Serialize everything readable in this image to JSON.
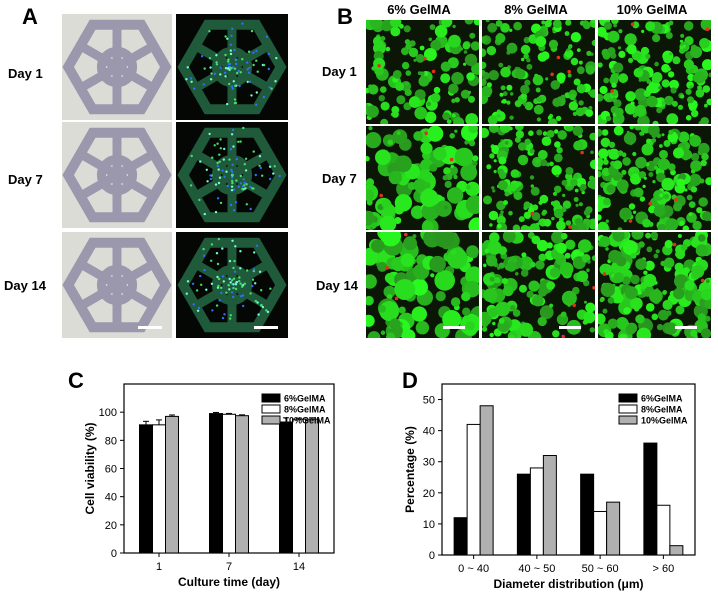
{
  "panel_labels": {
    "a": "A",
    "b": "B",
    "c": "C",
    "d": "D"
  },
  "days": [
    "Day 1",
    "Day 7",
    "Day 14"
  ],
  "gelma_columns": [
    "6% GelMA",
    "8% GelMA",
    "10% GelMA"
  ],
  "colors": {
    "black": "#000000",
    "white": "#ffffff",
    "gray": "#b0b0b0",
    "live_green": "#31d62a",
    "dead_red": "#e0301e",
    "nucleus_blue": "#2b4dff"
  },
  "chart_data": [
    {
      "type": "bar",
      "panel": "C",
      "categories": [
        "1",
        "7",
        "14"
      ],
      "series": [
        {
          "name": "6%GelMA",
          "values": [
            91,
            99,
            93
          ],
          "errors": [
            2.5,
            0.8,
            3
          ]
        },
        {
          "name": "8%GelMA",
          "values": [
            91,
            98.5,
            95
          ],
          "errors": [
            3.5,
            0.6,
            0.8
          ]
        },
        {
          "name": "10%GelMA",
          "values": [
            97,
            97.5,
            95
          ],
          "errors": [
            1,
            0.6,
            1
          ]
        }
      ],
      "xlabel": "Culture time (day)",
      "ylabel": "Cell viability (%)",
      "ylim": [
        0,
        120
      ],
      "yticks": [
        0,
        20,
        40,
        60,
        80,
        100
      ],
      "legend": "top-right"
    },
    {
      "type": "bar",
      "panel": "D",
      "categories": [
        "0 ~ 40",
        "40 ~ 50",
        "50 ~ 60",
        "> 60"
      ],
      "series": [
        {
          "name": "6%GelMA",
          "values": [
            12,
            26,
            26,
            36
          ]
        },
        {
          "name": "8%GelMA",
          "values": [
            42,
            28,
            14,
            16
          ]
        },
        {
          "name": "10%GelMA",
          "values": [
            48,
            32,
            17,
            3
          ]
        }
      ],
      "xlabel": "Diameter distribution (μm)",
      "ylabel": "Percentage (%)",
      "ylim": [
        0,
        55
      ],
      "yticks": [
        0,
        10,
        20,
        30,
        40,
        50
      ],
      "legend": "top-right"
    }
  ]
}
